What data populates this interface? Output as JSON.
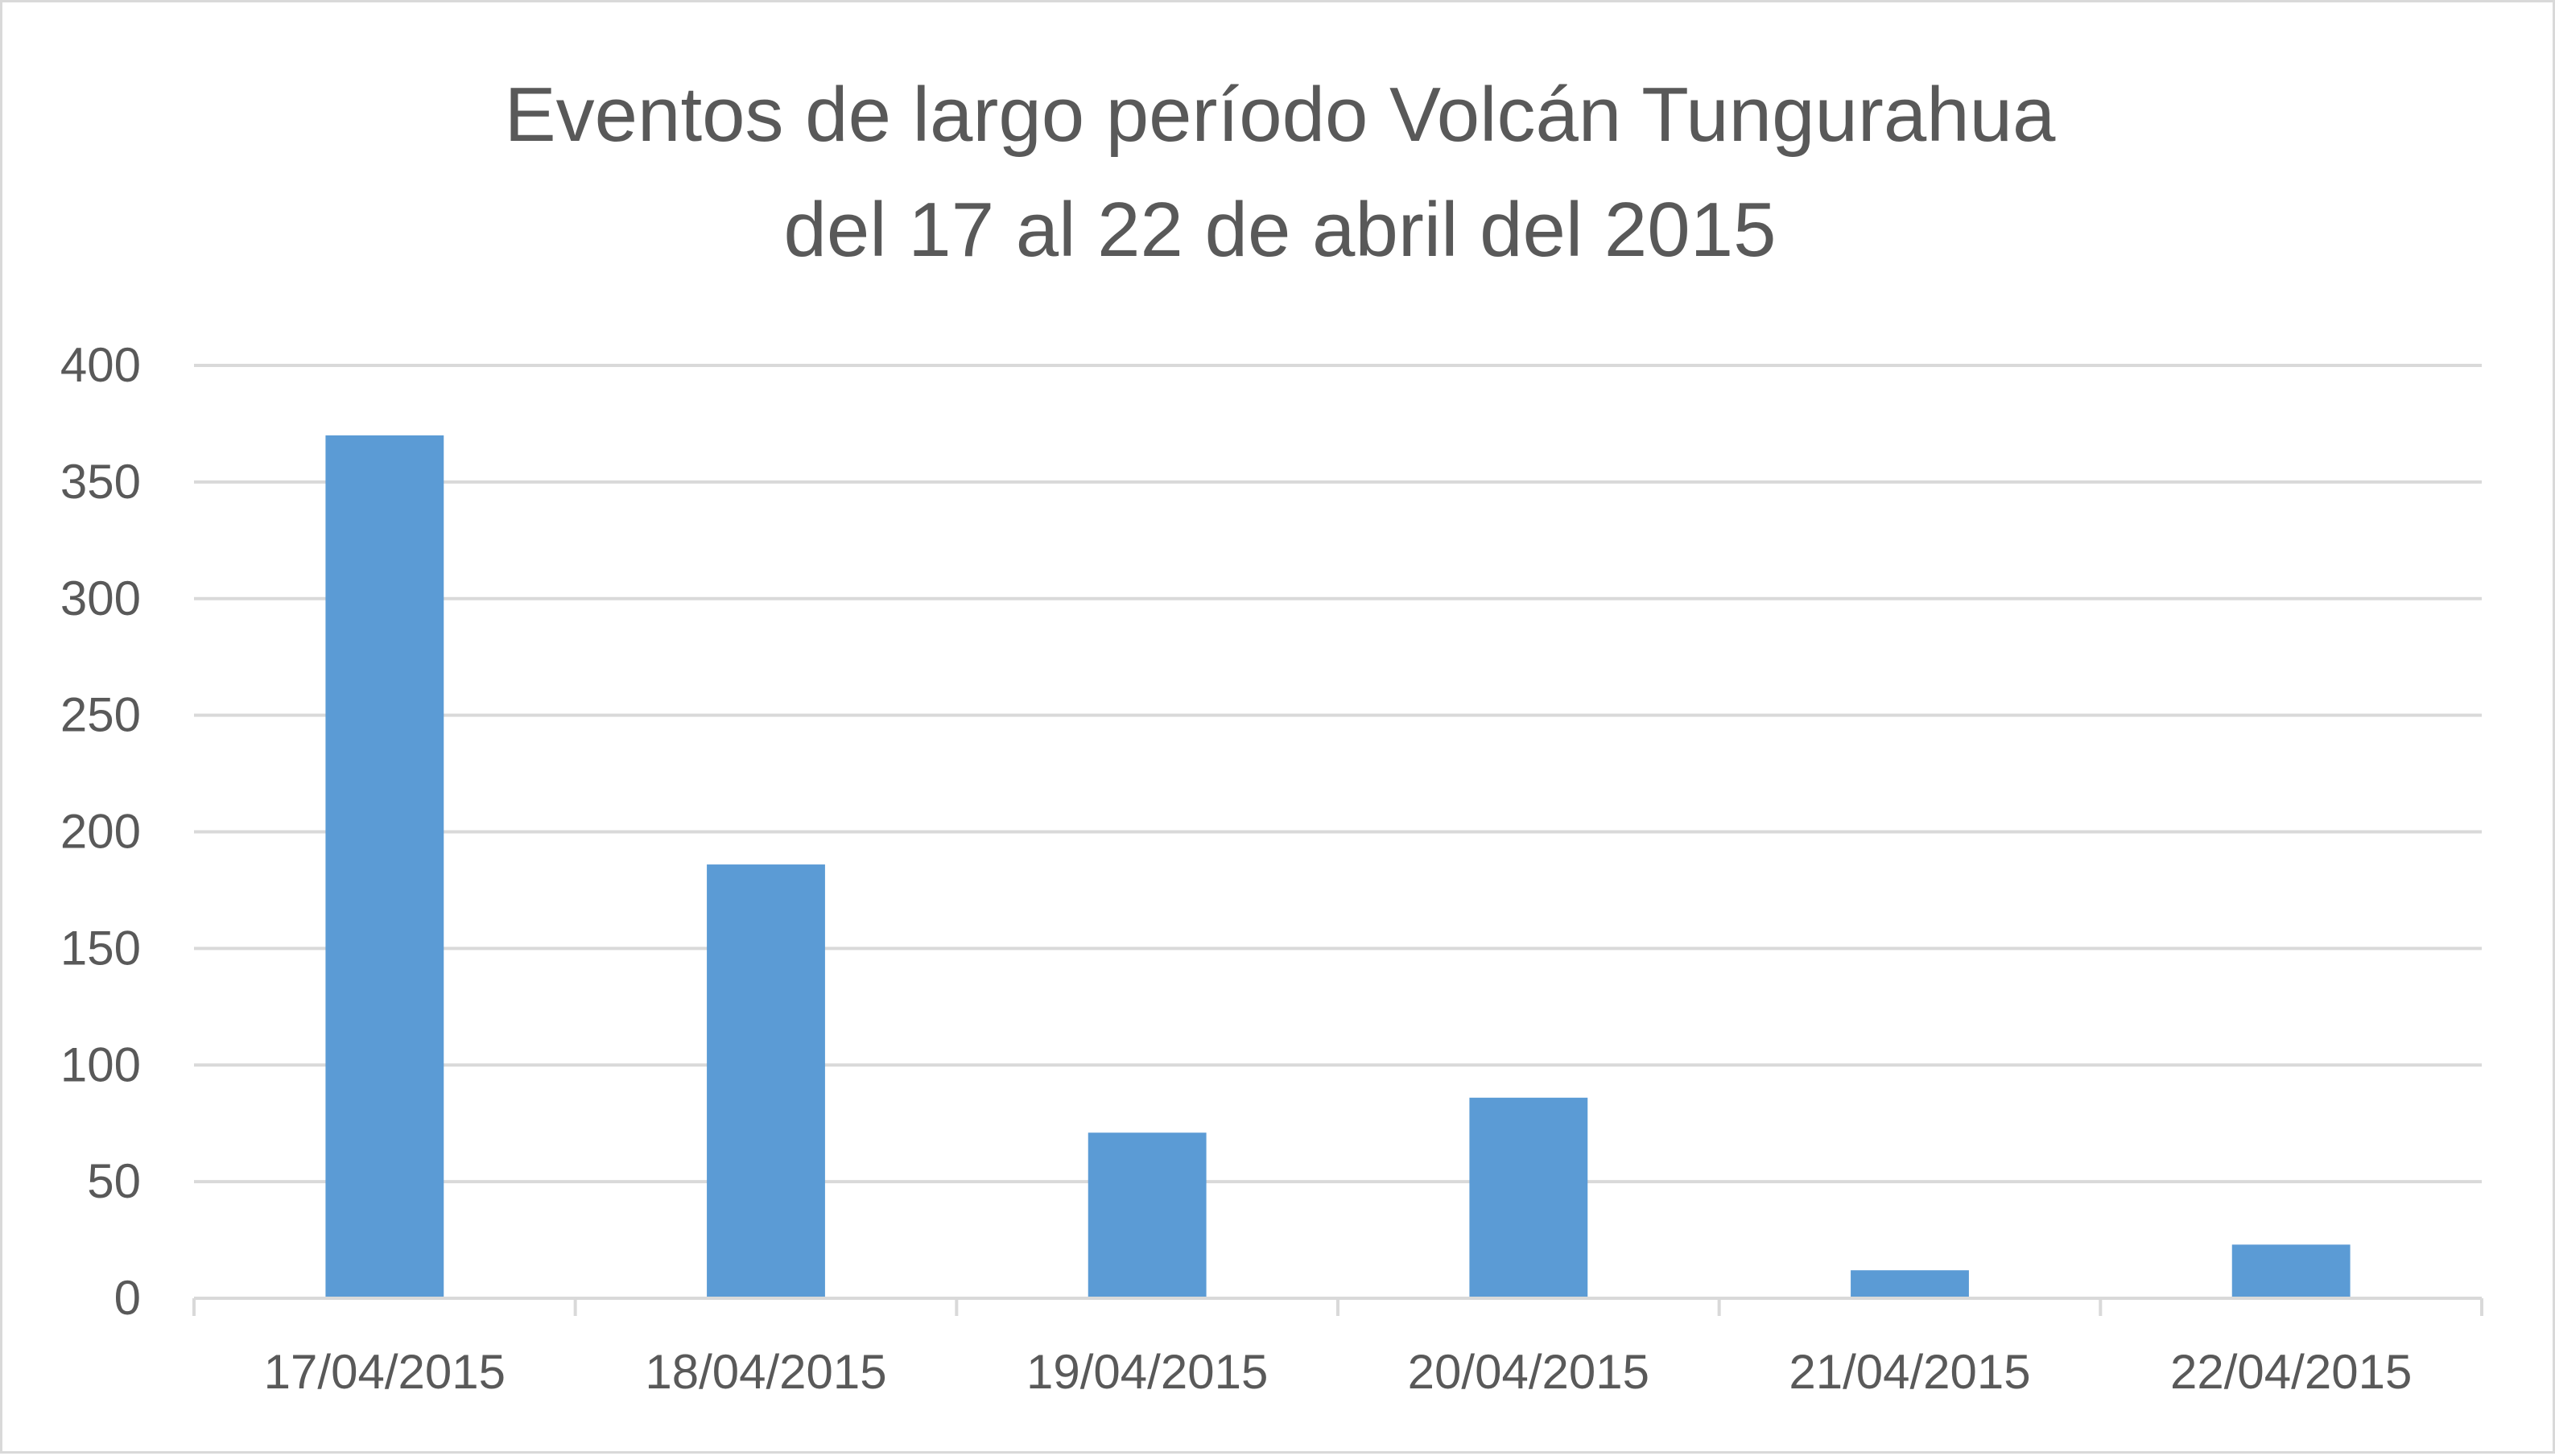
{
  "chart_data": {
    "type": "bar",
    "title": "Eventos de largo período Volcán Tungurahua",
    "subtitle": "del 17 al 22 de abril del 2015",
    "xlabel": "",
    "ylabel": "",
    "categories": [
      "17/04/2015",
      "18/04/2015",
      "19/04/2015",
      "20/04/2015",
      "21/04/2015",
      "22/04/2015"
    ],
    "values": [
      370,
      186,
      71,
      86,
      12,
      23
    ],
    "ylim": [
      0,
      400
    ],
    "yticks": [
      "0",
      "50",
      "100",
      "150",
      "200",
      "250",
      "300",
      "350",
      "400"
    ],
    "grid": true,
    "legend": "none",
    "bar_color": "#5b9bd5",
    "grid_color": "#d9d9d9",
    "text_color": "#595959"
  }
}
